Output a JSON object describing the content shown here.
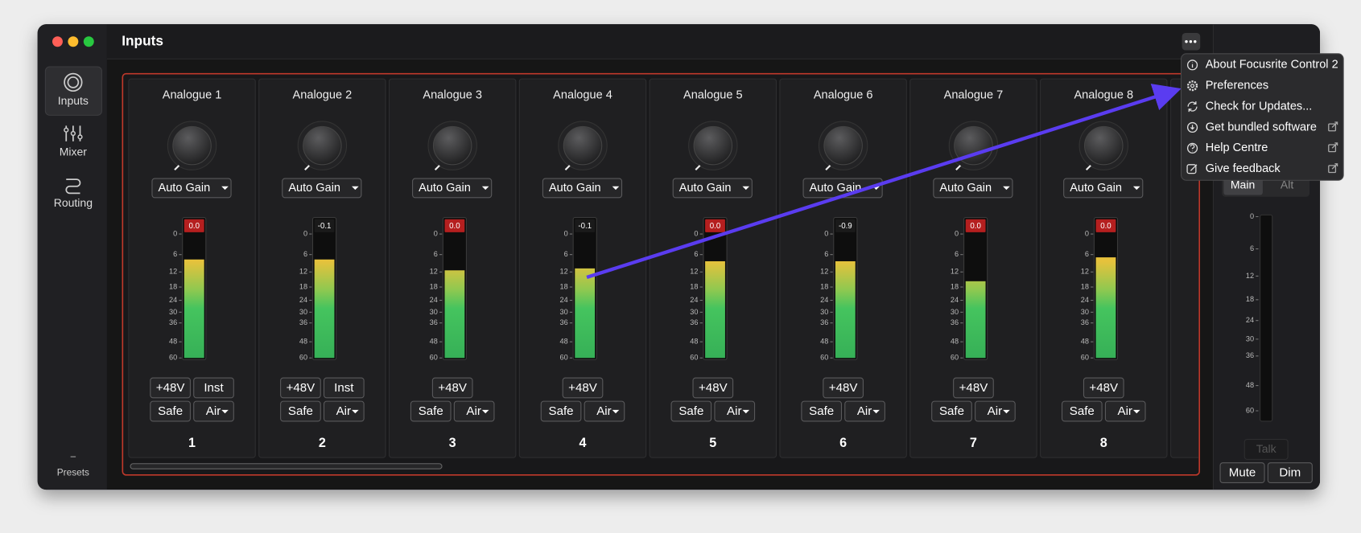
{
  "window": {
    "title": "Inputs"
  },
  "sidebar": [
    {
      "label": "Inputs",
      "icon": "inputs",
      "selected": true
    },
    {
      "label": "Mixer",
      "icon": "mixer",
      "selected": false
    },
    {
      "label": "Routing",
      "icon": "routing",
      "selected": false
    }
  ],
  "presets": "Presets",
  "meter_scale": [
    0,
    6,
    12,
    18,
    24,
    30,
    36,
    48,
    60
  ],
  "channels": [
    {
      "name": "Analogue 1",
      "gain_mode": "Auto Gain",
      "peak": "0.0",
      "clip": true,
      "level": 7.6,
      "phantom": "+48V",
      "inst": "Inst",
      "safe": "Safe",
      "air": "Air",
      "number": "1"
    },
    {
      "name": "Analogue 2",
      "gain_mode": "Auto Gain",
      "peak": "-0.1",
      "clip": false,
      "level": 7.6,
      "phantom": "+48V",
      "inst": "Inst",
      "safe": "Safe",
      "air": "Air",
      "number": "2"
    },
    {
      "name": "Analogue 3",
      "gain_mode": "Auto Gain",
      "peak": "0.0",
      "clip": true,
      "level": 11.4,
      "phantom": "+48V",
      "safe": "Safe",
      "air": "Air",
      "number": "3"
    },
    {
      "name": "Analogue 4",
      "gain_mode": "Auto Gain",
      "peak": "-0.1",
      "clip": false,
      "level": 10.7,
      "phantom": "+48V",
      "safe": "Safe",
      "air": "Air",
      "number": "4"
    },
    {
      "name": "Analogue 5",
      "gain_mode": "Auto Gain",
      "peak": "0.0",
      "clip": true,
      "level": 8.2,
      "phantom": "+48V",
      "safe": "Safe",
      "air": "Air",
      "number": "5"
    },
    {
      "name": "Analogue 6",
      "gain_mode": "Auto Gain",
      "peak": "-0.9",
      "clip": false,
      "level": 8.2,
      "phantom": "+48V",
      "safe": "Safe",
      "air": "Air",
      "number": "6"
    },
    {
      "name": "Analogue 7",
      "gain_mode": "Auto Gain",
      "peak": "0.0",
      "clip": true,
      "level": 15.6,
      "phantom": "+48V",
      "safe": "Safe",
      "air": "Air",
      "number": "7"
    },
    {
      "name": "Analogue 8",
      "gain_mode": "Auto Gain",
      "peak": "0.0",
      "clip": true,
      "level": 6.9,
      "phantom": "+48V",
      "safe": "Safe",
      "air": "Air",
      "number": "8"
    }
  ],
  "menu": [
    {
      "label": "About Focusrite Control 2",
      "icon": "info",
      "external": false
    },
    {
      "label": "Preferences",
      "icon": "gear",
      "external": false
    },
    {
      "label": "Check for Updates...",
      "icon": "refresh",
      "external": false
    },
    {
      "label": "Get bundled software",
      "icon": "download",
      "external": true
    },
    {
      "label": "Help Centre",
      "icon": "help",
      "external": true
    },
    {
      "label": "Give feedback",
      "icon": "edit",
      "external": true
    }
  ],
  "output": {
    "main": "Main",
    "alt": "Alt",
    "talk": "Talk",
    "mute": "Mute",
    "dim": "Dim"
  }
}
